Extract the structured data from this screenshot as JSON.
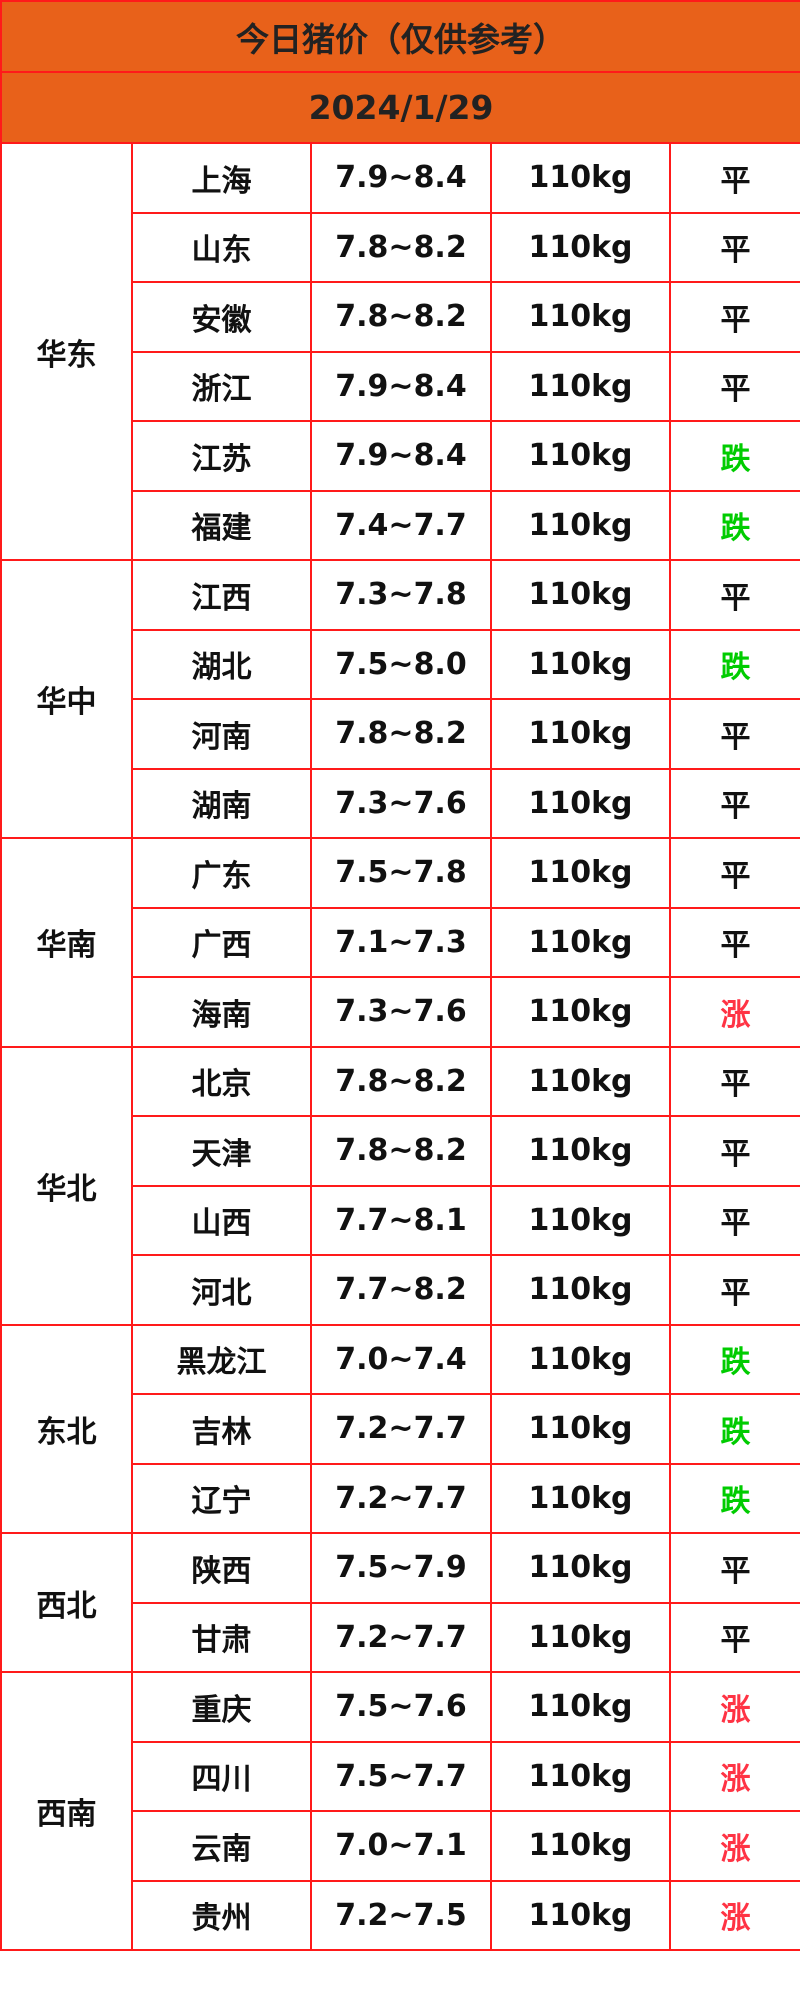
{
  "title": "今日猪价（仅供参考）",
  "date": "2024/1/29",
  "colors": {
    "header_bg": "#e8611a",
    "border": "#ff1a1a",
    "fall": "#00cc00",
    "rise": "#ff3344",
    "flat": "#111111"
  },
  "regions": [
    {
      "name": "华东",
      "rows": [
        {
          "province": "上海",
          "price": "7.9~8.4",
          "weight": "110kg",
          "trend": "平"
        },
        {
          "province": "山东",
          "price": "7.8~8.2",
          "weight": "110kg",
          "trend": "平"
        },
        {
          "province": "安徽",
          "price": "7.8~8.2",
          "weight": "110kg",
          "trend": "平"
        },
        {
          "province": "浙江",
          "price": "7.9~8.4",
          "weight": "110kg",
          "trend": "平"
        },
        {
          "province": "江苏",
          "price": "7.9~8.4",
          "weight": "110kg",
          "trend": "跌"
        },
        {
          "province": "福建",
          "price": "7.4~7.7",
          "weight": "110kg",
          "trend": "跌"
        }
      ]
    },
    {
      "name": "华中",
      "rows": [
        {
          "province": "江西",
          "price": "7.3~7.8",
          "weight": "110kg",
          "trend": "平"
        },
        {
          "province": "湖北",
          "price": "7.5~8.0",
          "weight": "110kg",
          "trend": "跌"
        },
        {
          "province": "河南",
          "price": "7.8~8.2",
          "weight": "110kg",
          "trend": "平"
        },
        {
          "province": "湖南",
          "price": "7.3~7.6",
          "weight": "110kg",
          "trend": "平"
        }
      ]
    },
    {
      "name": "华南",
      "rows": [
        {
          "province": "广东",
          "price": "7.5~7.8",
          "weight": "110kg",
          "trend": "平"
        },
        {
          "province": "广西",
          "price": "7.1~7.3",
          "weight": "110kg",
          "trend": "平"
        },
        {
          "province": "海南",
          "price": "7.3~7.6",
          "weight": "110kg",
          "trend": "涨"
        }
      ]
    },
    {
      "name": "华北",
      "rows": [
        {
          "province": "北京",
          "price": "7.8~8.2",
          "weight": "110kg",
          "trend": "平"
        },
        {
          "province": "天津",
          "price": "7.8~8.2",
          "weight": "110kg",
          "trend": "平"
        },
        {
          "province": "山西",
          "price": "7.7~8.1",
          "weight": "110kg",
          "trend": "平"
        },
        {
          "province": "河北",
          "price": "7.7~8.2",
          "weight": "110kg",
          "trend": "平"
        }
      ]
    },
    {
      "name": "东北",
      "rows": [
        {
          "province": "黑龙江",
          "price": "7.0~7.4",
          "weight": "110kg",
          "trend": "跌"
        },
        {
          "province": "吉林",
          "price": "7.2~7.7",
          "weight": "110kg",
          "trend": "跌"
        },
        {
          "province": "辽宁",
          "price": "7.2~7.7",
          "weight": "110kg",
          "trend": "跌"
        }
      ]
    },
    {
      "name": "西北",
      "rows": [
        {
          "province": "陕西",
          "price": "7.5~7.9",
          "weight": "110kg",
          "trend": "平"
        },
        {
          "province": "甘肃",
          "price": "7.2~7.7",
          "weight": "110kg",
          "trend": "平"
        }
      ]
    },
    {
      "name": "西南",
      "rows": [
        {
          "province": "重庆",
          "price": "7.5~7.6",
          "weight": "110kg",
          "trend": "涨"
        },
        {
          "province": "四川",
          "price": "7.5~7.7",
          "weight": "110kg",
          "trend": "涨"
        },
        {
          "province": "云南",
          "price": "7.0~7.1",
          "weight": "110kg",
          "trend": "涨"
        },
        {
          "province": "贵州",
          "price": "7.2~7.5",
          "weight": "110kg",
          "trend": "涨"
        }
      ]
    }
  ]
}
